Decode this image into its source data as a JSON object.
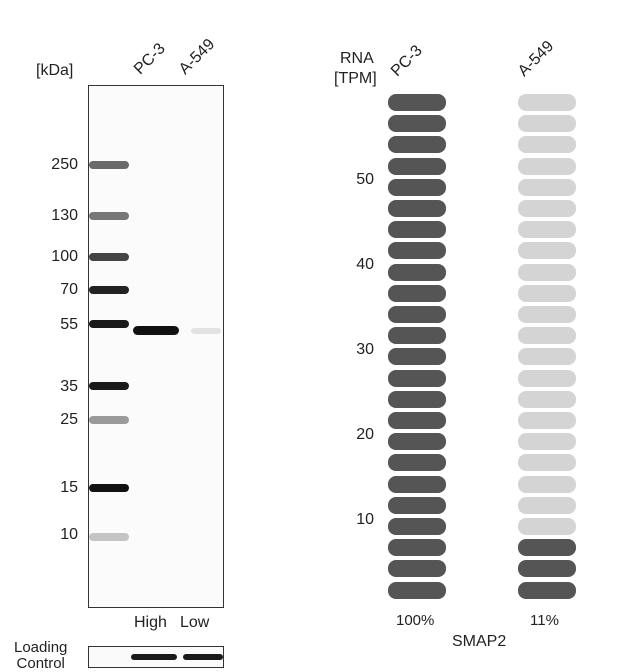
{
  "western_blot": {
    "unit_label": "[kDa]",
    "lanes": [
      "PC-3",
      "A-549"
    ],
    "markers": [
      "250",
      "130",
      "100",
      "70",
      "55",
      "35",
      "25",
      "15",
      "10"
    ],
    "bottom_labels": [
      "High",
      "Low"
    ],
    "loading_control": "Loading\nControl"
  },
  "rna_chart": {
    "axis_label_line1": "RNA",
    "axis_label_line2": "[TPM]",
    "columns": [
      {
        "name": "PC-3",
        "percent": "100%",
        "filled_pills": 24,
        "color": "#555555"
      },
      {
        "name": "A-549",
        "percent": "11%",
        "filled_pills": 3,
        "color": "#555555"
      }
    ],
    "empty_color": "#d4d4d4",
    "total_pills": 24,
    "y_ticks": [
      "50",
      "40",
      "30",
      "20",
      "10"
    ],
    "gene": "SMAP2"
  },
  "chart_data": {
    "type": "bar",
    "title": "",
    "ylabel": "RNA [TPM]",
    "categories": [
      "PC-3",
      "A-549"
    ],
    "values": [
      100,
      11
    ],
    "units": "percent of max",
    "y_ticks": [
      10,
      20,
      30,
      40,
      50
    ],
    "gene": "SMAP2"
  }
}
